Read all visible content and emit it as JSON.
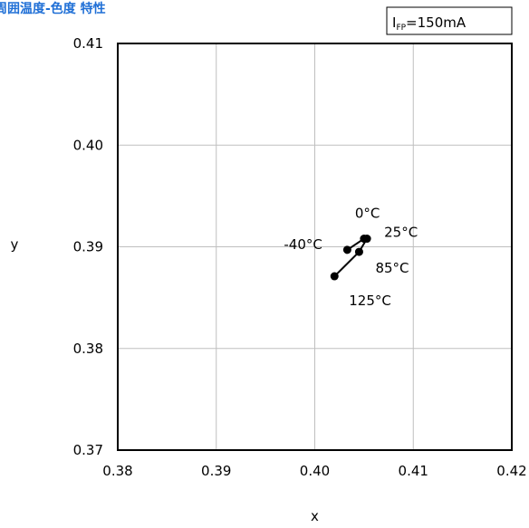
{
  "chart_data": {
    "type": "scatter",
    "title": "周囲温度-色度 特性",
    "condition": {
      "symbol": "I",
      "subscript": "FP",
      "value": "=150mA"
    },
    "xlabel": "x",
    "ylabel": "y",
    "xlim": [
      0.38,
      0.42
    ],
    "ylim": [
      0.37,
      0.41
    ],
    "xticks": [
      "0.38",
      "0.39",
      "0.40",
      "0.41",
      "0.42"
    ],
    "yticks": [
      "0.37",
      "0.38",
      "0.39",
      "0.40",
      "0.41"
    ],
    "grid": true,
    "series": [
      {
        "points": [
          {
            "x": 0.4033,
            "y": 0.3897,
            "label": "-40°C"
          },
          {
            "x": 0.405,
            "y": 0.3908,
            "label": "0°C"
          },
          {
            "x": 0.4053,
            "y": 0.3908,
            "label": "25°C"
          },
          {
            "x": 0.4045,
            "y": 0.3895,
            "label": "85°C"
          },
          {
            "x": 0.402,
            "y": 0.3871,
            "label": "125°C"
          }
        ]
      }
    ],
    "colors": {
      "title": "#1f6fd6",
      "line": "#000000",
      "grid": "#bfbfbf"
    }
  }
}
